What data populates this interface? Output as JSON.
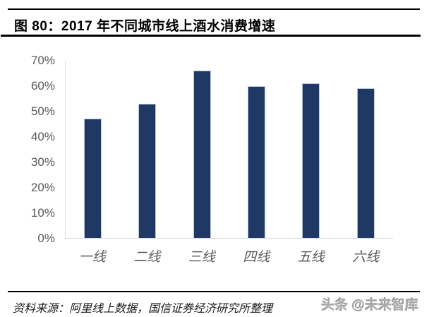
{
  "header": {
    "title": "图 80：2017 年不同城市线上酒水消费增速"
  },
  "chart_data": {
    "type": "bar",
    "title": "2017 年不同城市线上酒水消费增速",
    "categories": [
      "一线",
      "二线",
      "三线",
      "四线",
      "五线",
      "六线"
    ],
    "values": [
      47,
      53,
      66,
      60,
      61,
      59
    ],
    "unit": "%",
    "xlabel": "",
    "ylabel": "",
    "ylim": [
      0,
      70
    ],
    "ytick_step": 10,
    "ytick_labels": [
      "70%",
      "60%",
      "50%",
      "40%",
      "30%",
      "20%",
      "10%",
      "0%"
    ],
    "grid": false,
    "legend_position": "none",
    "bar_color": "#1F3864",
    "bar_border_color": "#BCC7D7",
    "axis_line_color": "#D9D9D9",
    "tick_label_color": "#595959"
  },
  "footer": {
    "source": "资料来源：阿里线上数据，国信证券经济研究所整理",
    "watermark": "头条 @未来智库"
  }
}
